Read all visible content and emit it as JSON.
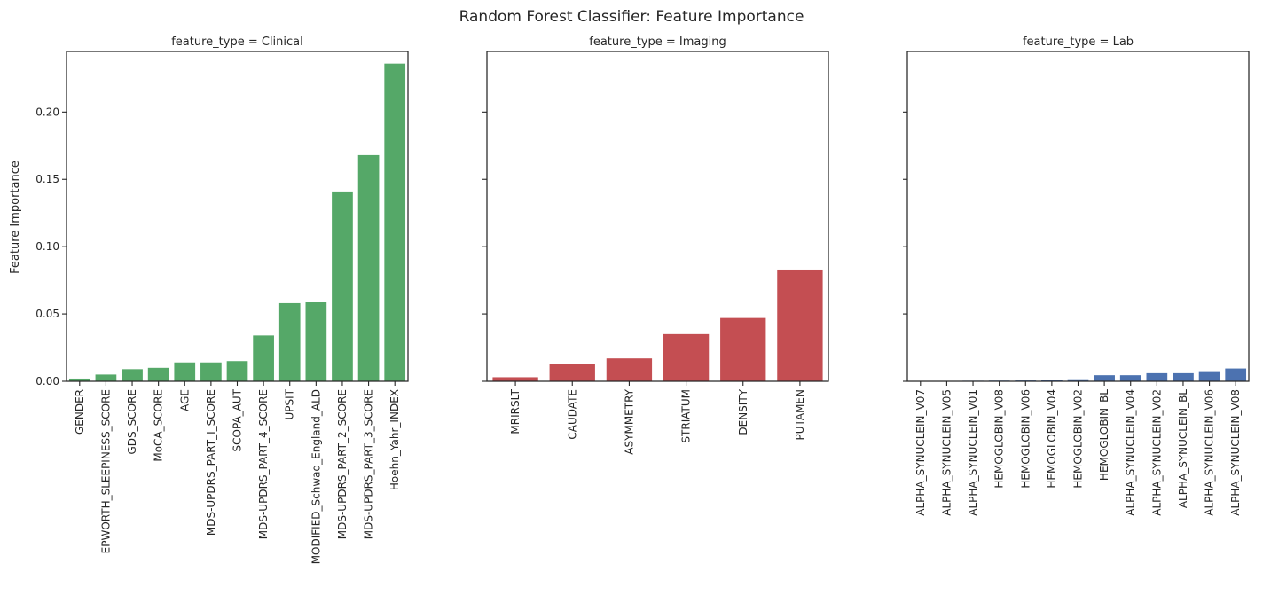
{
  "chart_data": {
    "type": "bar",
    "title": "Random Forest Classifier: Feature Importance",
    "ylabel": "Feature Importance",
    "ylim": [
      0,
      0.245
    ],
    "yticks": [
      0.0,
      0.05,
      0.1,
      0.15,
      0.2
    ],
    "ytick_labels": [
      "0.00",
      "0.05",
      "0.10",
      "0.15",
      "0.20"
    ],
    "sharey": true,
    "grid": false,
    "facets": [
      {
        "title": "feature_type = Clinical",
        "color": "#55a868",
        "categories": [
          "GENDER",
          "EPWORTH_SLEEPINESS_SCORE",
          "GDS_SCORE",
          "MoCA_SCORE",
          "AGE",
          "MDS-UPDRS_PART_I_SCORE",
          "SCOPA_AUT",
          "MDS-UPDRS_PART_4_SCORE",
          "UPSIT",
          "MODIFIED_Schwad_England_ALD",
          "MDS-UPDRS_PART_2_SCORE",
          "MDS-UPDRS_PART_3_SCORE",
          "Hoehn_Yahr_INDEX"
        ],
        "values": [
          0.002,
          0.005,
          0.009,
          0.01,
          0.014,
          0.014,
          0.015,
          0.034,
          0.058,
          0.059,
          0.141,
          0.168,
          0.236
        ]
      },
      {
        "title": "feature_type = Imaging",
        "color": "#c44e52",
        "categories": [
          "MRIRSLT",
          "CAUDATE",
          "ASYMMETRY",
          "STRIATUM",
          "DENSITY",
          "PUTAMEN"
        ],
        "values": [
          0.003,
          0.013,
          0.017,
          0.035,
          0.047,
          0.083
        ]
      },
      {
        "title": "feature_type = Lab",
        "color": "#4c72b0",
        "categories": [
          "ALPHA_SYNUCLEIN_V07",
          "ALPHA_SYNUCLEIN_V05",
          "ALPHA_SYNUCLEIN_V01",
          "HEMOGLOBIN_V08",
          "HEMOGLOBIN_V06",
          "HEMOGLOBIN_V04",
          "HEMOGLOBIN_V02",
          "HEMOGLOBIN_BL",
          "ALPHA_SYNUCLEIN_V04",
          "ALPHA_SYNUCLEIN_V02",
          "ALPHA_SYNUCLEIN_BL",
          "ALPHA_SYNUCLEIN_V06",
          "ALPHA_SYNUCLEIN_V08"
        ],
        "values": [
          0.0002,
          0.0003,
          0.0004,
          0.0005,
          0.0006,
          0.001,
          0.0015,
          0.0045,
          0.0045,
          0.006,
          0.006,
          0.0075,
          0.0095
        ]
      }
    ]
  }
}
